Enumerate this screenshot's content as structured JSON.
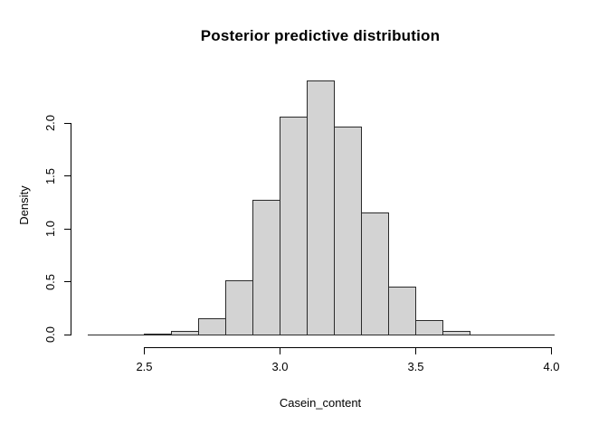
{
  "chart_data": {
    "type": "bar",
    "subtype": "histogram",
    "title": "Posterior predictive distribution",
    "xlabel": "Casein_content",
    "ylabel": "Density",
    "xlim": [
      2.3,
      4.0
    ],
    "ylim": [
      0,
      2.4
    ],
    "bin_width": 0.1,
    "bins": [
      {
        "start": 2.3,
        "density": 0
      },
      {
        "start": 2.4,
        "density": 0
      },
      {
        "start": 2.5,
        "density": 0.01
      },
      {
        "start": 2.6,
        "density": 0.03
      },
      {
        "start": 2.7,
        "density": 0.15
      },
      {
        "start": 2.8,
        "density": 0.51
      },
      {
        "start": 2.9,
        "density": 1.27
      },
      {
        "start": 3.0,
        "density": 2.06
      },
      {
        "start": 3.1,
        "density": 2.4
      },
      {
        "start": 3.2,
        "density": 1.97
      },
      {
        "start": 3.3,
        "density": 1.15
      },
      {
        "start": 3.4,
        "density": 0.45
      },
      {
        "start": 3.5,
        "density": 0.14
      },
      {
        "start": 3.6,
        "density": 0.03
      },
      {
        "start": 3.7,
        "density": 0
      },
      {
        "start": 3.8,
        "density": 0
      },
      {
        "start": 3.9,
        "density": 0
      }
    ],
    "x_ticks": [
      2.5,
      3.0,
      3.5,
      4.0
    ],
    "x_tick_labels": [
      "2.5",
      "3.0",
      "3.5",
      "4.0"
    ],
    "y_ticks": [
      0.0,
      0.5,
      1.0,
      1.5,
      2.0
    ],
    "y_tick_labels": [
      "0.0",
      "0.5",
      "1.0",
      "1.5",
      "2.0"
    ],
    "grid": "off",
    "legend": "none",
    "colors": {
      "bar_fill": "#d3d3d3",
      "bar_border": "#2a2a2a",
      "axis": "#000000",
      "text": "#000000",
      "background": "#ffffff"
    }
  }
}
